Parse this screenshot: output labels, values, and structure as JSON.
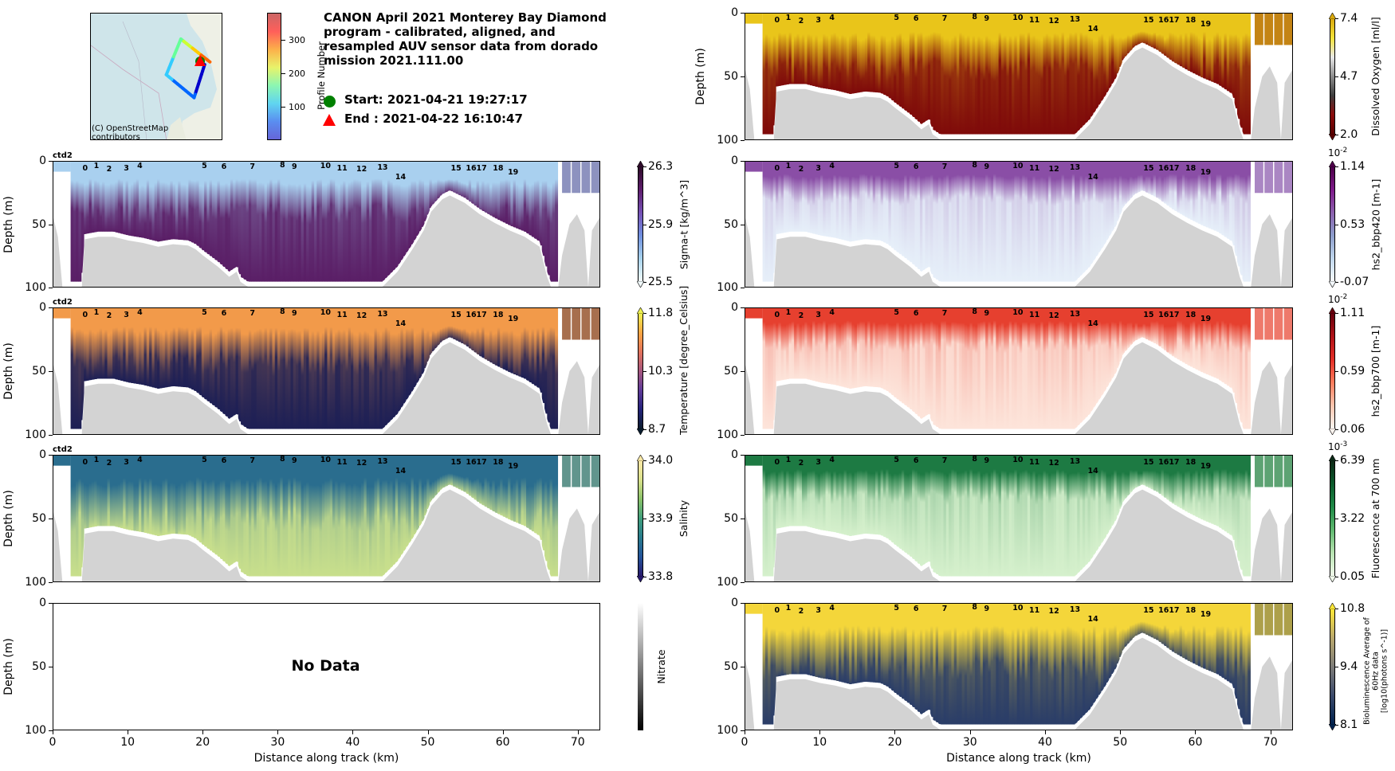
{
  "title": "CANON April 2021 Monterey Bay Diamond\nprogram - calibrated, aligned, and\nresampled AUV sensor data from dorado\nmission 2021.111.00",
  "legend": {
    "start": {
      "label": "Start: 2021-04-21 19:27:17",
      "color": "#008000",
      "marker": "circle"
    },
    "end": {
      "label": "End  : 2021-04-22 16:10:47",
      "color": "#ff0000",
      "marker": "triangle"
    }
  },
  "map": {
    "attribution": "(C) OpenStreetMap\ncontributors",
    "colorbar_label": "Profile Number",
    "colorbar_ticks": [
      "100",
      "200",
      "300"
    ],
    "colorbar_range": [
      0,
      380
    ],
    "track": [
      {
        "profile": 0,
        "lon": 0.86,
        "lat": 0.4
      },
      {
        "profile": 60,
        "lon": 0.78,
        "lat": 0.66
      },
      {
        "profile": 120,
        "lon": 0.57,
        "lat": 0.48
      },
      {
        "profile": 200,
        "lon": 0.68,
        "lat": 0.2
      },
      {
        "profile": 380,
        "lon": 0.9,
        "lat": 0.38
      }
    ]
  },
  "chart_data": [
    {
      "id": "sigma_t",
      "type": "heatmap",
      "column": "left",
      "row": 1,
      "ylabel": "Depth (m)",
      "xlabel": "",
      "xlim": [
        0,
        73
      ],
      "ylim": [
        100,
        0
      ],
      "yticks": [
        "0",
        "50",
        "100"
      ],
      "xticks": [],
      "corner_label": "ctd2",
      "colorbar": {
        "label": "Sigma-t [kg/m^3]",
        "ticks": [
          "26.3",
          "25.9",
          "25.5"
        ],
        "range": [
          25.5,
          26.3
        ],
        "exponent": "",
        "colors": [
          "#f2fbfc",
          "#a7d2ec",
          "#6f8fdf",
          "#7550b5",
          "#5e1d6d",
          "#2e0b2a"
        ],
        "extend": "both"
      },
      "surface_color": "#a9d0ef",
      "deep_color": "#5a1e66",
      "layer_depth_frac": 0.28
    },
    {
      "id": "temperature",
      "type": "heatmap",
      "column": "left",
      "row": 2,
      "ylabel": "Depth (m)",
      "xlabel": "",
      "xlim": [
        0,
        73
      ],
      "ylim": [
        100,
        0
      ],
      "yticks": [
        "0",
        "50",
        "100"
      ],
      "xticks": [],
      "corner_label": "ctd2",
      "colorbar": {
        "label": "Temperature [degree_Celsius]",
        "ticks": [
          "11.8",
          "10.3",
          "8.7"
        ],
        "range": [
          8.7,
          11.8
        ],
        "exponent": "",
        "colors": [
          "#0a1c2e",
          "#23227a",
          "#5e3a98",
          "#a5567e",
          "#e2725b",
          "#f9a542",
          "#eef04f"
        ],
        "extend": "both"
      },
      "surface_color": "#f29a4a",
      "deep_color": "#1d1f55",
      "layer_depth_frac": 0.3
    },
    {
      "id": "salinity",
      "type": "heatmap",
      "column": "left",
      "row": 3,
      "ylabel": "Depth (m)",
      "xlabel": "",
      "xlim": [
        0,
        73
      ],
      "ylim": [
        100,
        0
      ],
      "yticks": [
        "0",
        "50",
        "100"
      ],
      "xticks": [],
      "corner_label": "ctd2",
      "colorbar": {
        "label": "Salinity",
        "ticks": [
          "34.0",
          "33.9",
          "33.8"
        ],
        "range": [
          33.8,
          34.0
        ],
        "exponent": "",
        "colors": [
          "#281a6e",
          "#23539a",
          "#287b8c",
          "#3f9e7c",
          "#88c168",
          "#d8e08a",
          "#fbe9a6"
        ],
        "extend": "both"
      },
      "surface_color": "#2a6d8e",
      "deep_color": "#c8df8c",
      "layer_depth_frac": 0.35
    },
    {
      "id": "nitrate",
      "type": "heatmap",
      "column": "left",
      "row": 4,
      "ylabel": "Depth (m)",
      "xlabel": "Distance along track (km)",
      "xlim": [
        0,
        73
      ],
      "ylim": [
        100,
        0
      ],
      "yticks": [
        "0",
        "50",
        "100"
      ],
      "xticks": [
        "0",
        "10",
        "20",
        "30",
        "40",
        "50",
        "60",
        "70"
      ],
      "corner_label": "",
      "annotation": "No Data",
      "colorbar": {
        "label": "Nitrate",
        "ticks": [],
        "range": null,
        "exponent": "",
        "colors": [
          "#000000",
          "#ffffff"
        ],
        "extend": "none"
      },
      "no_data": true
    },
    {
      "id": "dissolved_oxygen",
      "type": "heatmap",
      "column": "right",
      "row": 0,
      "ylabel": "Depth (m)",
      "xlabel": "",
      "xlim": [
        0,
        73
      ],
      "ylim": [
        100,
        0
      ],
      "yticks": [
        "0",
        "50",
        "100"
      ],
      "xticks": [],
      "corner_label": "",
      "colorbar": {
        "label": "Dissolved Oxygen [ml/l]",
        "ticks": [
          "7.4",
          "4.7",
          "2.0"
        ],
        "range": [
          2.0,
          7.4
        ],
        "exponent": "",
        "colors": [
          "#5a0000",
          "#8b0a0a",
          "#3c3c3c",
          "#8c8c8c",
          "#e8e8e8",
          "#f3e33a",
          "#d9a90d"
        ],
        "extend": "both"
      },
      "surface_color": "#e9c51a",
      "deep_color": "#7f0a0a",
      "layer_depth_frac": 0.3
    },
    {
      "id": "bbp420",
      "type": "heatmap",
      "column": "right",
      "row": 1,
      "ylabel": "",
      "xlabel": "",
      "xlim": [
        0,
        73
      ],
      "ylim": [
        100,
        0
      ],
      "yticks": [
        "0",
        "50",
        "100"
      ],
      "xticks": [],
      "corner_label": "",
      "colorbar": {
        "label": "hs2_bbp420 [m-1]",
        "ticks": [
          "1.14",
          "0.53",
          "-0.07"
        ],
        "range": [
          -0.07,
          1.14
        ],
        "exponent": "10^-2",
        "colors": [
          "#f6fafe",
          "#bfd6ec",
          "#8c9dcb",
          "#8b60ad",
          "#7e1a8a",
          "#4d0049"
        ],
        "extend": "both"
      },
      "surface_color": "#8a4ea6",
      "deep_color": "#e6eff9",
      "layer_depth_frac": 0.2
    },
    {
      "id": "bbp700",
      "type": "heatmap",
      "column": "right",
      "row": 2,
      "ylabel": "",
      "xlabel": "",
      "xlim": [
        0,
        73
      ],
      "ylim": [
        100,
        0
      ],
      "yticks": [
        "0",
        "50",
        "100"
      ],
      "xticks": [],
      "corner_label": "",
      "colorbar": {
        "label": "hs2_bbp700 [m-1]",
        "ticks": [
          "1.11",
          "0.59",
          "0.06"
        ],
        "range": [
          0.06,
          1.11
        ],
        "exponent": "10^-2",
        "colors": [
          "#fff5f0",
          "#fdc5ae",
          "#fb7c5c",
          "#e32f27",
          "#b11218",
          "#67000d"
        ],
        "extend": "both"
      },
      "surface_color": "#e6402f",
      "deep_color": "#fde4da",
      "layer_depth_frac": 0.2
    },
    {
      "id": "fluorescence",
      "type": "heatmap",
      "column": "right",
      "row": 3,
      "ylabel": "",
      "xlabel": "",
      "xlim": [
        0,
        73
      ],
      "ylim": [
        100,
        0
      ],
      "yticks": [
        "0",
        "50",
        "100"
      ],
      "xticks": [],
      "corner_label": "",
      "colorbar": {
        "label": "Fluorescence at 700 nm",
        "ticks": [
          "6.39",
          "3.22",
          "0.05"
        ],
        "range": [
          0.05,
          6.39
        ],
        "exponent": "10^-3",
        "colors": [
          "#f0faea",
          "#b8e3b1",
          "#5fb86f",
          "#1f8a47",
          "#0a5a2b",
          "#0c2a17"
        ],
        "extend": "both"
      },
      "surface_color": "#1d7a43",
      "deep_color": "#d5f0cc",
      "layer_depth_frac": 0.22
    },
    {
      "id": "bioluminescence",
      "type": "heatmap",
      "column": "right",
      "row": 4,
      "ylabel": "",
      "xlabel": "Distance along track (km)",
      "xlim": [
        0,
        73
      ],
      "ylim": [
        100,
        0
      ],
      "yticks": [
        "0",
        "50",
        "100"
      ],
      "xticks": [
        "0",
        "10",
        "20",
        "30",
        "40",
        "50",
        "60",
        "70"
      ],
      "corner_label": "",
      "colorbar": {
        "label": "Bioluminescence Average of 60Hz data\n[log10(photons s^-1)]",
        "ticks": [
          "10.8",
          "9.4",
          "8.1"
        ],
        "range": [
          8.1,
          10.8
        ],
        "exponent": "",
        "colors": [
          "#00224e",
          "#3b4a6b",
          "#7d7c78",
          "#b9a86d",
          "#fde737"
        ],
        "extend": "both"
      },
      "surface_color": "#f4d63a",
      "deep_color": "#2a3d68",
      "layer_depth_frac": 0.35
    }
  ],
  "profiles": [
    {
      "n": "0",
      "km": 4.3,
      "d": 3
    },
    {
      "n": "1",
      "km": 5.8,
      "d": 0
    },
    {
      "n": "2",
      "km": 7.5,
      "d": 4
    },
    {
      "n": "3",
      "km": 9.8,
      "d": 3
    },
    {
      "n": "4",
      "km": 11.6,
      "d": 0
    },
    {
      "n": "5",
      "km": 20.2,
      "d": 0
    },
    {
      "n": "6",
      "km": 22.8,
      "d": 1
    },
    {
      "n": "7",
      "km": 26.6,
      "d": 1
    },
    {
      "n": "8",
      "km": 30.6,
      "d": -1
    },
    {
      "n": "9",
      "km": 32.2,
      "d": 1
    },
    {
      "n": "10",
      "km": 36.0,
      "d": 0
    },
    {
      "n": "11",
      "km": 38.2,
      "d": 3
    },
    {
      "n": "12",
      "km": 40.8,
      "d": 4
    },
    {
      "n": "13",
      "km": 43.6,
      "d": 2
    },
    {
      "n": "14",
      "km": 46.0,
      "d": 14
    },
    {
      "n": "15",
      "km": 53.4,
      "d": 3
    },
    {
      "n": "16",
      "km": 55.4,
      "d": 3
    },
    {
      "n": "17",
      "km": 56.8,
      "d": 3
    },
    {
      "n": "18",
      "km": 59.0,
      "d": 3
    },
    {
      "n": "19",
      "km": 61.0,
      "d": 8
    }
  ],
  "bathymetry": [
    [
      0,
      45
    ],
    [
      0.6,
      60
    ],
    [
      1.2,
      100
    ],
    [
      3.8,
      100
    ],
    [
      4.2,
      62
    ],
    [
      6,
      60
    ],
    [
      8,
      60
    ],
    [
      10,
      63
    ],
    [
      12,
      65
    ],
    [
      14,
      68
    ],
    [
      16,
      66
    ],
    [
      18,
      67
    ],
    [
      19,
      70
    ],
    [
      20,
      75
    ],
    [
      22,
      84
    ],
    [
      23.5,
      92
    ],
    [
      24.5,
      88
    ],
    [
      25,
      96
    ],
    [
      26,
      100
    ],
    [
      44,
      100
    ],
    [
      46,
      88
    ],
    [
      48,
      70
    ],
    [
      49.5,
      55
    ],
    [
      50.5,
      40
    ],
    [
      52,
      30
    ],
    [
      53,
      27
    ],
    [
      55,
      33
    ],
    [
      57,
      42
    ],
    [
      59,
      49
    ],
    [
      61,
      55
    ],
    [
      63,
      60
    ],
    [
      65,
      68
    ],
    [
      66,
      92
    ],
    [
      66.5,
      100
    ],
    [
      67.5,
      100
    ],
    [
      68,
      75
    ],
    [
      69,
      50
    ],
    [
      70,
      42
    ],
    [
      71,
      55
    ],
    [
      71.5,
      100
    ],
    [
      72,
      55
    ],
    [
      73,
      45
    ],
    [
      73,
      100
    ]
  ]
}
